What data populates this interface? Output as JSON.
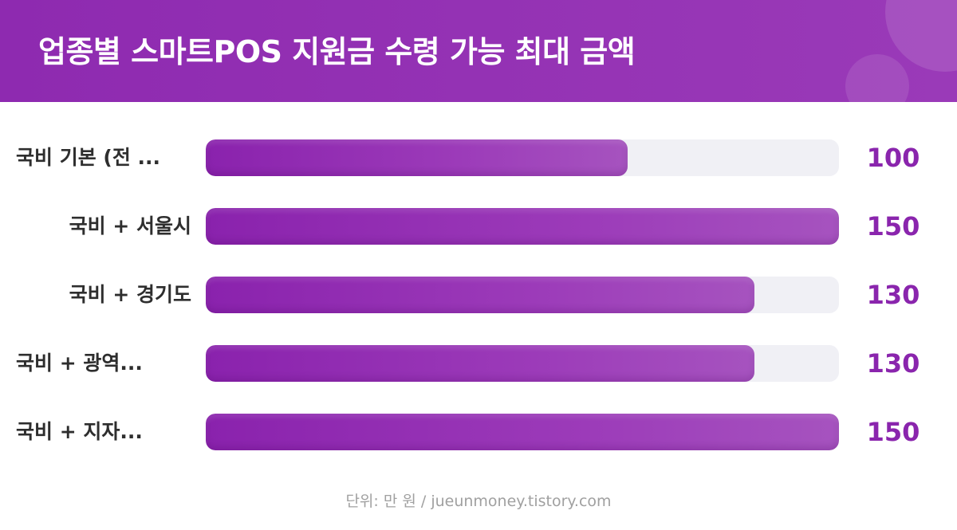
{
  "header": {
    "title": "업종별 스마트POS 지원금 수령 가능 최대 금액"
  },
  "colors": {
    "header_bg": "#9333b5",
    "bar_fill": "#9630b6",
    "bar_track": "#f0f0f5",
    "value_text": "#8a25ad",
    "label_text": "#2e2e2e",
    "footer_text": "#a0a0a0"
  },
  "chart_data": {
    "type": "bar",
    "orientation": "horizontal",
    "categories": [
      "국비 기본 (전 ...",
      "국비 + 서울시",
      "국비 + 경기도",
      "국비 + 광역...",
      "국비 + 지자..."
    ],
    "values": [
      100,
      150,
      130,
      130,
      150
    ],
    "value_labels": [
      "100",
      "150",
      "130",
      "130",
      "150"
    ],
    "title": "업종별 스마트POS 지원금 수령 가능 최대 금액",
    "xlim": [
      0,
      150
    ],
    "grid": false,
    "legend": "none"
  },
  "footer": {
    "note": "단위: 만 원 / jueunmoney.tistory.com"
  }
}
